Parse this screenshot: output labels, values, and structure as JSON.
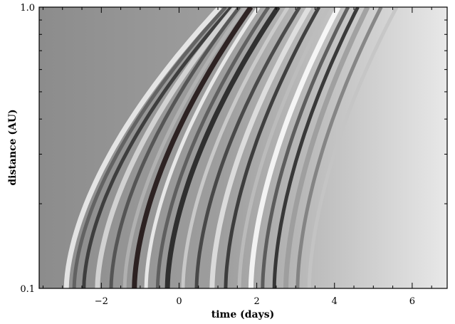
{
  "chart_data": {
    "type": "heatmap",
    "title": "",
    "xlabel": "time (days)",
    "ylabel": "distance (AU)",
    "xlim": [
      -3.6,
      6.9
    ],
    "ylim": [
      0.1,
      1.0
    ],
    "yscale": "log",
    "x_ticks": [
      {
        "value": -2,
        "label": "−2"
      },
      {
        "value": 0,
        "label": "0"
      },
      {
        "value": 2,
        "label": "2"
      },
      {
        "value": 4,
        "label": "4"
      },
      {
        "value": 6,
        "label": "6"
      }
    ],
    "y_ticks": [
      {
        "value": 0.1,
        "label": "0.1"
      },
      {
        "value": 1.0,
        "label": "1.0"
      }
    ],
    "colormap": "grayscale",
    "background_left": "#8c8c8c",
    "background_right": "#e8e8e8",
    "tracks": [
      {
        "x_at_0_1au": -2.9,
        "x_at_1au": 1.05,
        "shade": "#f2f2f2"
      },
      {
        "x_at_0_1au": -2.7,
        "x_at_1au": 1.2,
        "shade": "#5a5a5a"
      },
      {
        "x_at_0_1au": -2.45,
        "x_at_1au": 1.35,
        "shade": "#2f2f2f"
      },
      {
        "x_at_0_1au": -2.1,
        "x_at_1au": 1.45,
        "shade": "#dcdcdc"
      },
      {
        "x_at_0_1au": -1.75,
        "x_at_1au": 1.55,
        "shade": "#4a4a4a"
      },
      {
        "x_at_0_1au": -1.4,
        "x_at_1au": 1.7,
        "shade": "#b5b5b5"
      },
      {
        "x_at_0_1au": -1.15,
        "x_at_1au": 1.85,
        "shade": "#1a0d0d"
      },
      {
        "x_at_0_1au": -0.85,
        "x_at_1au": 2.05,
        "shade": "#f5f5f5"
      },
      {
        "x_at_0_1au": -0.55,
        "x_at_1au": 2.3,
        "shade": "#555555"
      },
      {
        "x_at_0_1au": -0.3,
        "x_at_1au": 2.55,
        "shade": "#1c1c1c"
      },
      {
        "x_at_0_1au": 0.1,
        "x_at_1au": 2.8,
        "shade": "#d0d0d0"
      },
      {
        "x_at_0_1au": 0.45,
        "x_at_1au": 3.1,
        "shade": "#3a3a3a"
      },
      {
        "x_at_0_1au": 0.85,
        "x_at_1au": 3.35,
        "shade": "#e5e5e5"
      },
      {
        "x_at_0_1au": 1.2,
        "x_at_1au": 3.6,
        "shade": "#2c2c2c"
      },
      {
        "x_at_0_1au": 1.55,
        "x_at_1au": 3.85,
        "shade": "#bdbdbd"
      },
      {
        "x_at_0_1au": 1.85,
        "x_at_1au": 4.1,
        "shade": "#ffffff"
      },
      {
        "x_at_0_1au": 2.15,
        "x_at_1au": 4.35,
        "shade": "#4d4d4d"
      },
      {
        "x_at_0_1au": 2.45,
        "x_at_1au": 4.6,
        "shade": "#222222"
      },
      {
        "x_at_0_1au": 2.75,
        "x_at_1au": 4.85,
        "shade": "#9a9a9a"
      },
      {
        "x_at_0_1au": 3.05,
        "x_at_1au": 5.2,
        "shade": "#7a7a7a"
      },
      {
        "x_at_0_1au": 3.35,
        "x_at_1au": 5.6,
        "shade": "#c4c4c4"
      }
    ]
  }
}
